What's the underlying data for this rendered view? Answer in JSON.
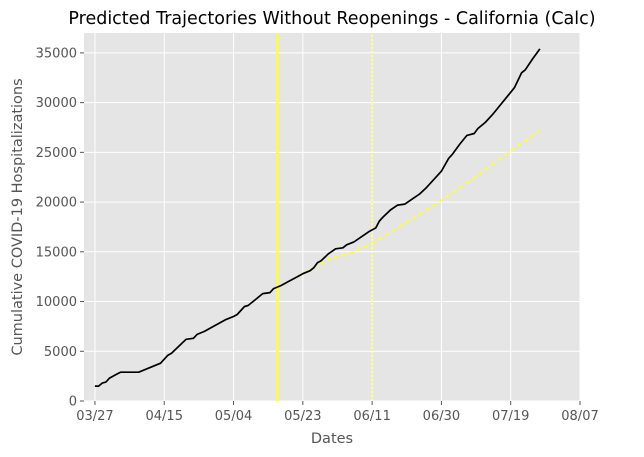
{
  "chart_data": {
    "type": "line",
    "title": "Predicted Trajectories Without Reopenings - California (Calc)",
    "xlabel": "Dates",
    "ylabel": "Cumulative COVID-19 Hospitalizations",
    "x_is_date": true,
    "year": 2020,
    "xlim": [
      "2020-03-24",
      "2020-08-07"
    ],
    "ylim": [
      0,
      37000
    ],
    "x_ticks": [
      "2020-03-27",
      "2020-04-15",
      "2020-05-04",
      "2020-05-23",
      "2020-06-11",
      "2020-06-30",
      "2020-07-19",
      "2020-08-07"
    ],
    "x_tick_labels": [
      "03/27",
      "04/15",
      "05/04",
      "05/23",
      "06/11",
      "06/30",
      "07/19",
      "08/07"
    ],
    "y_ticks": [
      0,
      5000,
      10000,
      15000,
      20000,
      25000,
      30000,
      35000
    ],
    "y_tick_labels": [
      "0",
      "5000",
      "10000",
      "15000",
      "20000",
      "25000",
      "30000",
      "35000"
    ],
    "grid": true,
    "background": "#E5E5E5",
    "series": [
      {
        "style": "solid",
        "color": "#000000",
        "points": [
          [
            "2020-03-27",
            1500
          ],
          [
            "2020-03-28",
            1500
          ],
          [
            "2020-03-29",
            1800
          ],
          [
            "2020-03-30",
            1900
          ],
          [
            "2020-03-31",
            2300
          ],
          [
            "2020-04-02",
            2700
          ],
          [
            "2020-04-03",
            2900
          ],
          [
            "2020-04-06",
            2900
          ],
          [
            "2020-04-08",
            2900
          ],
          [
            "2020-04-10",
            3200
          ],
          [
            "2020-04-12",
            3500
          ],
          [
            "2020-04-14",
            3800
          ],
          [
            "2020-04-16",
            4600
          ],
          [
            "2020-04-17",
            4800
          ],
          [
            "2020-04-19",
            5500
          ],
          [
            "2020-04-21",
            6200
          ],
          [
            "2020-04-23",
            6300
          ],
          [
            "2020-04-24",
            6700
          ],
          [
            "2020-04-26",
            7000
          ],
          [
            "2020-04-28",
            7400
          ],
          [
            "2020-04-30",
            7800
          ],
          [
            "2020-05-02",
            8200
          ],
          [
            "2020-05-04",
            8500
          ],
          [
            "2020-05-05",
            8700
          ],
          [
            "2020-05-07",
            9500
          ],
          [
            "2020-05-08",
            9600
          ],
          [
            "2020-05-10",
            10200
          ],
          [
            "2020-05-12",
            10800
          ],
          [
            "2020-05-14",
            10900
          ],
          [
            "2020-05-15",
            11300
          ],
          [
            "2020-05-17",
            11600
          ],
          [
            "2020-05-19",
            12000
          ],
          [
            "2020-05-21",
            12400
          ],
          [
            "2020-05-23",
            12800
          ],
          [
            "2020-05-25",
            13100
          ],
          [
            "2020-05-26",
            13400
          ],
          [
            "2020-05-27",
            13900
          ],
          [
            "2020-05-28",
            14100
          ],
          [
            "2020-05-30",
            14800
          ],
          [
            "2020-06-01",
            15300
          ],
          [
            "2020-06-03",
            15400
          ],
          [
            "2020-06-04",
            15700
          ],
          [
            "2020-06-06",
            16000
          ],
          [
            "2020-06-08",
            16500
          ],
          [
            "2020-06-10",
            17000
          ],
          [
            "2020-06-12",
            17400
          ],
          [
            "2020-06-13",
            18100
          ],
          [
            "2020-06-14",
            18500
          ],
          [
            "2020-06-16",
            19200
          ],
          [
            "2020-06-18",
            19700
          ],
          [
            "2020-06-20",
            19800
          ],
          [
            "2020-06-22",
            20300
          ],
          [
            "2020-06-24",
            20800
          ],
          [
            "2020-06-26",
            21500
          ],
          [
            "2020-06-28",
            22300
          ],
          [
            "2020-06-30",
            23100
          ],
          [
            "2020-07-02",
            24400
          ],
          [
            "2020-07-03",
            24800
          ],
          [
            "2020-07-05",
            25800
          ],
          [
            "2020-07-07",
            26700
          ],
          [
            "2020-07-09",
            26900
          ],
          [
            "2020-07-10",
            27400
          ],
          [
            "2020-07-12",
            28000
          ],
          [
            "2020-07-14",
            28800
          ],
          [
            "2020-07-16",
            29700
          ],
          [
            "2020-07-18",
            30600
          ],
          [
            "2020-07-20",
            31500
          ],
          [
            "2020-07-22",
            33000
          ],
          [
            "2020-07-23",
            33300
          ],
          [
            "2020-07-25",
            34400
          ],
          [
            "2020-07-27",
            35400
          ]
        ]
      },
      {
        "style": "dashed",
        "color": "#FFFF33",
        "points": [
          [
            "2020-05-16",
            11400
          ],
          [
            "2020-05-23",
            12800
          ],
          [
            "2020-05-30",
            14300
          ],
          [
            "2020-06-06",
            15000
          ],
          [
            "2020-06-13",
            16300
          ],
          [
            "2020-06-20",
            17900
          ],
          [
            "2020-06-27",
            19500
          ],
          [
            "2020-07-04",
            21200
          ],
          [
            "2020-07-11",
            23000
          ],
          [
            "2020-07-18",
            24900
          ],
          [
            "2020-07-27",
            27200
          ]
        ]
      }
    ],
    "vlines": [
      {
        "x": "2020-05-16",
        "style": "solid",
        "color": "#FFFF33"
      },
      {
        "x": "2020-06-11",
        "style": "dotted",
        "color": "#FFFF33"
      }
    ]
  }
}
